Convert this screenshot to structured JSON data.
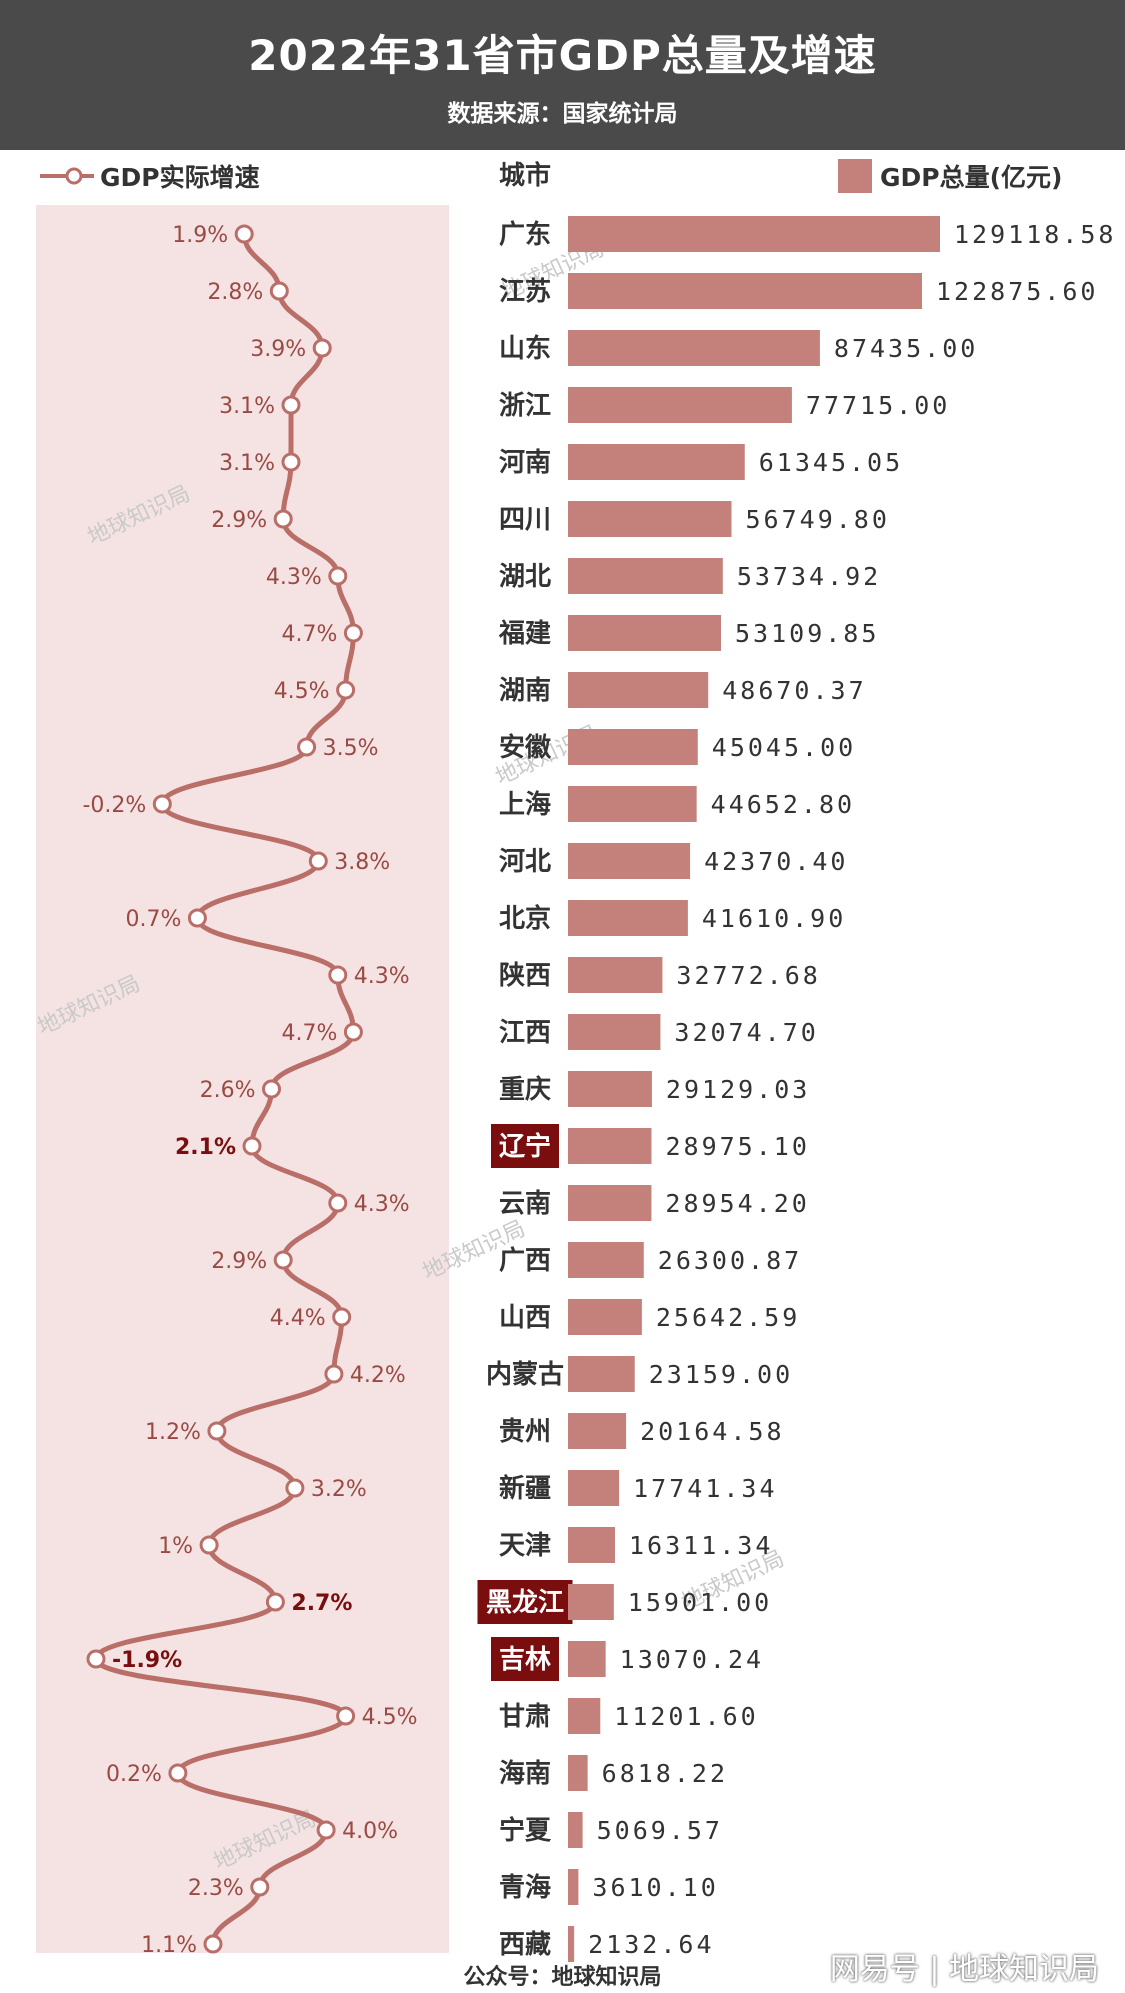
{
  "header": {
    "title": "2022年31省市GDP总量及增速",
    "subtitle": "数据来源：国家统计局"
  },
  "legend": {
    "growth_label": "GDP实际增速",
    "column_header": "城市",
    "total_label": "GDP总量(亿元)"
  },
  "colors": {
    "bar": "#c4807a",
    "line": "#b96e68",
    "panel_bg": "#f5e3e3",
    "highlight": "#7a0e0e"
  },
  "watermark_text": "地球知识局",
  "footer": {
    "source": "公众号：地球知识局",
    "brand": "网易号 | 地球知识局"
  },
  "chart_data": {
    "type": "bar",
    "categories": [
      "广东",
      "江苏",
      "山东",
      "浙江",
      "河南",
      "四川",
      "湖北",
      "福建",
      "湖南",
      "安徽",
      "上海",
      "河北",
      "北京",
      "陕西",
      "江西",
      "重庆",
      "辽宁",
      "云南",
      "广西",
      "山西",
      "内蒙古",
      "贵州",
      "新疆",
      "天津",
      "黑龙江",
      "吉林",
      "甘肃",
      "海南",
      "宁夏",
      "青海",
      "西藏"
    ],
    "highlighted": [
      "辽宁",
      "黑龙江",
      "吉林"
    ],
    "series": [
      {
        "name": "GDP总量(亿元)",
        "values": [
          129118.58,
          122875.6,
          87435.0,
          77715.0,
          61345.05,
          56749.8,
          53734.92,
          53109.85,
          48670.37,
          45045.0,
          44652.8,
          42370.4,
          41610.9,
          32772.68,
          32074.7,
          29129.03,
          28975.1,
          28954.2,
          26300.87,
          25642.59,
          23159.0,
          20164.58,
          17741.34,
          16311.34,
          15901.0,
          13070.24,
          11201.6,
          6818.22,
          5069.57,
          3610.1,
          2132.64
        ],
        "labels": [
          "129118.58",
          "122875.60",
          "87435.00",
          "77715.00",
          "61345.05",
          "56749.80",
          "53734.92",
          "53109.85",
          "48670.37",
          "45045.00",
          "44652.80",
          "42370.40",
          "41610.90",
          "32772.68",
          "32074.70",
          "29129.03",
          "28975.10",
          "28954.20",
          "26300.87",
          "25642.59",
          "23159.00",
          "20164.58",
          "17741.34",
          "16311.34",
          "15901.00",
          "13070.24",
          "11201.60",
          "6818.22",
          "5069.57",
          "3610.10",
          "2132.64"
        ]
      },
      {
        "name": "GDP实际增速",
        "type": "line",
        "values": [
          1.9,
          2.8,
          3.9,
          3.1,
          3.1,
          2.9,
          4.3,
          4.7,
          4.5,
          3.5,
          -0.2,
          3.8,
          0.7,
          4.3,
          4.7,
          2.6,
          2.1,
          4.3,
          2.9,
          4.4,
          4.2,
          1.2,
          3.2,
          1,
          2.7,
          -1.9,
          4.5,
          0.2,
          4.0,
          2.3,
          1.1
        ],
        "labels": [
          "1.9%",
          "2.8%",
          "3.9%",
          "3.1%",
          "3.1%",
          "2.9%",
          "4.3%",
          "4.7%",
          "4.5%",
          "3.5%",
          "-0.2%",
          "3.8%",
          "0.7%",
          "4.3%",
          "4.7%",
          "2.6%",
          "2.1%",
          "4.3%",
          "2.9%",
          "4.4%",
          "4.2%",
          "1.2%",
          "3.2%",
          "1%",
          "2.7%",
          "-1.9%",
          "4.5%",
          "0.2%",
          "4.0%",
          "2.3%",
          "1.1%"
        ],
        "label_side": [
          "left",
          "left",
          "left",
          "left",
          "left",
          "left",
          "left",
          "left",
          "left",
          "right",
          "left",
          "right",
          "left",
          "right",
          "left",
          "left",
          "left",
          "right",
          "left",
          "left",
          "right",
          "left",
          "right",
          "left",
          "right",
          "right",
          "right",
          "left",
          "right",
          "left",
          "left"
        ]
      }
    ]
  }
}
